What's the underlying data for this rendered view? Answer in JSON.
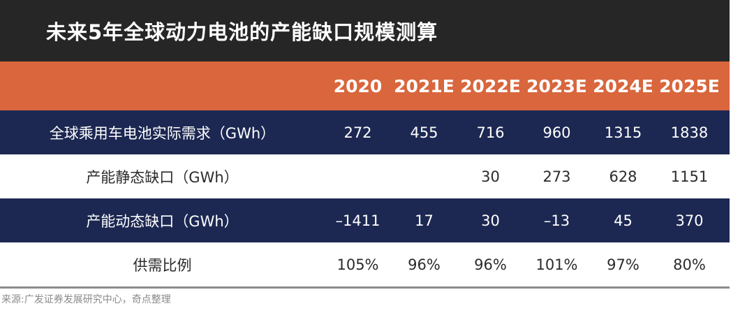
{
  "title": "未来5年全球动力电池的产能缺口规模测算",
  "source_note": "来源:广发证券发展研究中心，奇点整理",
  "colors": {
    "title_bg": "#262626",
    "header_bg": "#d9663c",
    "navy_row": "#1c2852",
    "white_row": "#ffffff"
  },
  "chart_data": {
    "type": "table",
    "title": "未来5年全球动力电池的产能缺口规模测算",
    "columns": [
      "2020",
      "2021E",
      "2022E",
      "2023E",
      "2024E",
      "2025E"
    ],
    "rows": [
      {
        "label": "全球乘用车电池实际需求（GWh）",
        "values": [
          "272",
          "455",
          "716",
          "960",
          "1315",
          "1838"
        ]
      },
      {
        "label": "产能静态缺口（GWh）",
        "values": [
          "",
          "",
          "30",
          "273",
          "628",
          "1151"
        ]
      },
      {
        "label": "产能动态缺口（GWh）",
        "values": [
          "–1411",
          "17",
          "30",
          "–13",
          "45",
          "370"
        ]
      },
      {
        "label": "供需比例",
        "values": [
          "105%",
          "96%",
          "96%",
          "101%",
          "97%",
          "80%"
        ]
      }
    ]
  }
}
